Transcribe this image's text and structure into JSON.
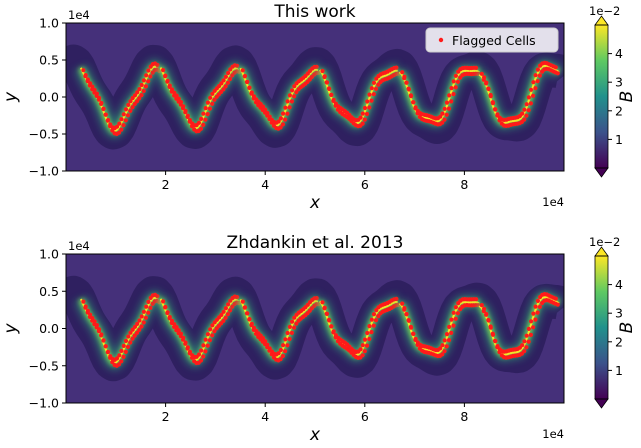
{
  "chart_data": [
    {
      "type": "heatmap",
      "title": "This work",
      "xlabel": "x",
      "ylabel": "y",
      "x_offset_label": "1e4",
      "y_offset_label": "1e4",
      "xlim": [
        0.0,
        10.0
      ],
      "ylim": [
        -1.0,
        1.0
      ],
      "xticks": [
        "2",
        "4",
        "6",
        "8"
      ],
      "yticks": [
        "1.0",
        "0.5",
        "0.0",
        "−0.5",
        "−1.0"
      ],
      "legend": {
        "entries": [
          "Flagged Cells"
        ],
        "position": "top-right"
      },
      "colorbar": {
        "label": "B",
        "offset_label": "1e−2",
        "ticks": [
          "1",
          "2",
          "3",
          "4"
        ],
        "range": [
          0.0,
          5.0
        ],
        "colormap": "viridis"
      },
      "field": "magnetic field magnitude B in a Kelvin-Helmholtz shear layer: dark background (~0.5e-2) with bright rolled-up current sheets (up to ~5e-2) along a wavy interface with 6 vortex crests",
      "flagged_cells": "red markers tracing the bright current sheets"
    },
    {
      "type": "heatmap",
      "title": "Zhdankin et al. 2013",
      "xlabel": "x",
      "ylabel": "y",
      "x_offset_label": "1e4",
      "y_offset_label": "1e4",
      "xlim": [
        0.0,
        10.0
      ],
      "ylim": [
        -1.0,
        1.0
      ],
      "xticks": [
        "2",
        "4",
        "6",
        "8"
      ],
      "yticks": [
        "1.0",
        "0.5",
        "0.0",
        "−0.5",
        "−1.0"
      ],
      "colorbar": {
        "label": "B",
        "offset_label": "1e−2",
        "ticks": [
          "1",
          "2",
          "3",
          "4"
        ],
        "range": [
          0.0,
          5.0
        ],
        "colormap": "viridis"
      },
      "field": "same magnetic field snapshot",
      "flagged_cells": "red markers tracing the bright current sheets (no legend)"
    }
  ],
  "colors": {
    "background_field": "#45307a",
    "low": "#440154",
    "mid": "#21918c",
    "high": "#fde725",
    "flagged": "#ff1a1a"
  }
}
